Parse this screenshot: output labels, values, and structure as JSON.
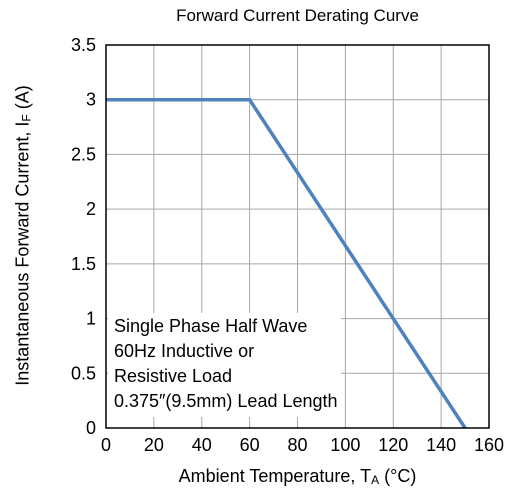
{
  "chart_data": {
    "type": "line",
    "title": "Forward Current Derating Curve",
    "xlabel": {
      "main": "Ambient Temperature, T",
      "sub": "A",
      "unit": " (°C)"
    },
    "ylabel": {
      "main": "Instantaneous Forward Current, I",
      "sub": "F",
      "unit": " (A)"
    },
    "xlim": [
      0,
      160
    ],
    "ylim": [
      0,
      3.5
    ],
    "xticks": [
      0,
      20,
      40,
      60,
      80,
      100,
      120,
      140,
      160
    ],
    "yticks": [
      0,
      0.5,
      1,
      1.5,
      2,
      2.5,
      3,
      3.5
    ],
    "grid": true,
    "series": [
      {
        "color": "#4f81bd",
        "x": [
          0,
          60,
          150
        ],
        "y": [
          3,
          3,
          0
        ]
      }
    ],
    "annotation": [
      "Single Phase Half Wave",
      "60Hz Inductive or",
      "Resistive Load",
      "0.375″(9.5mm) Lead Length"
    ]
  }
}
